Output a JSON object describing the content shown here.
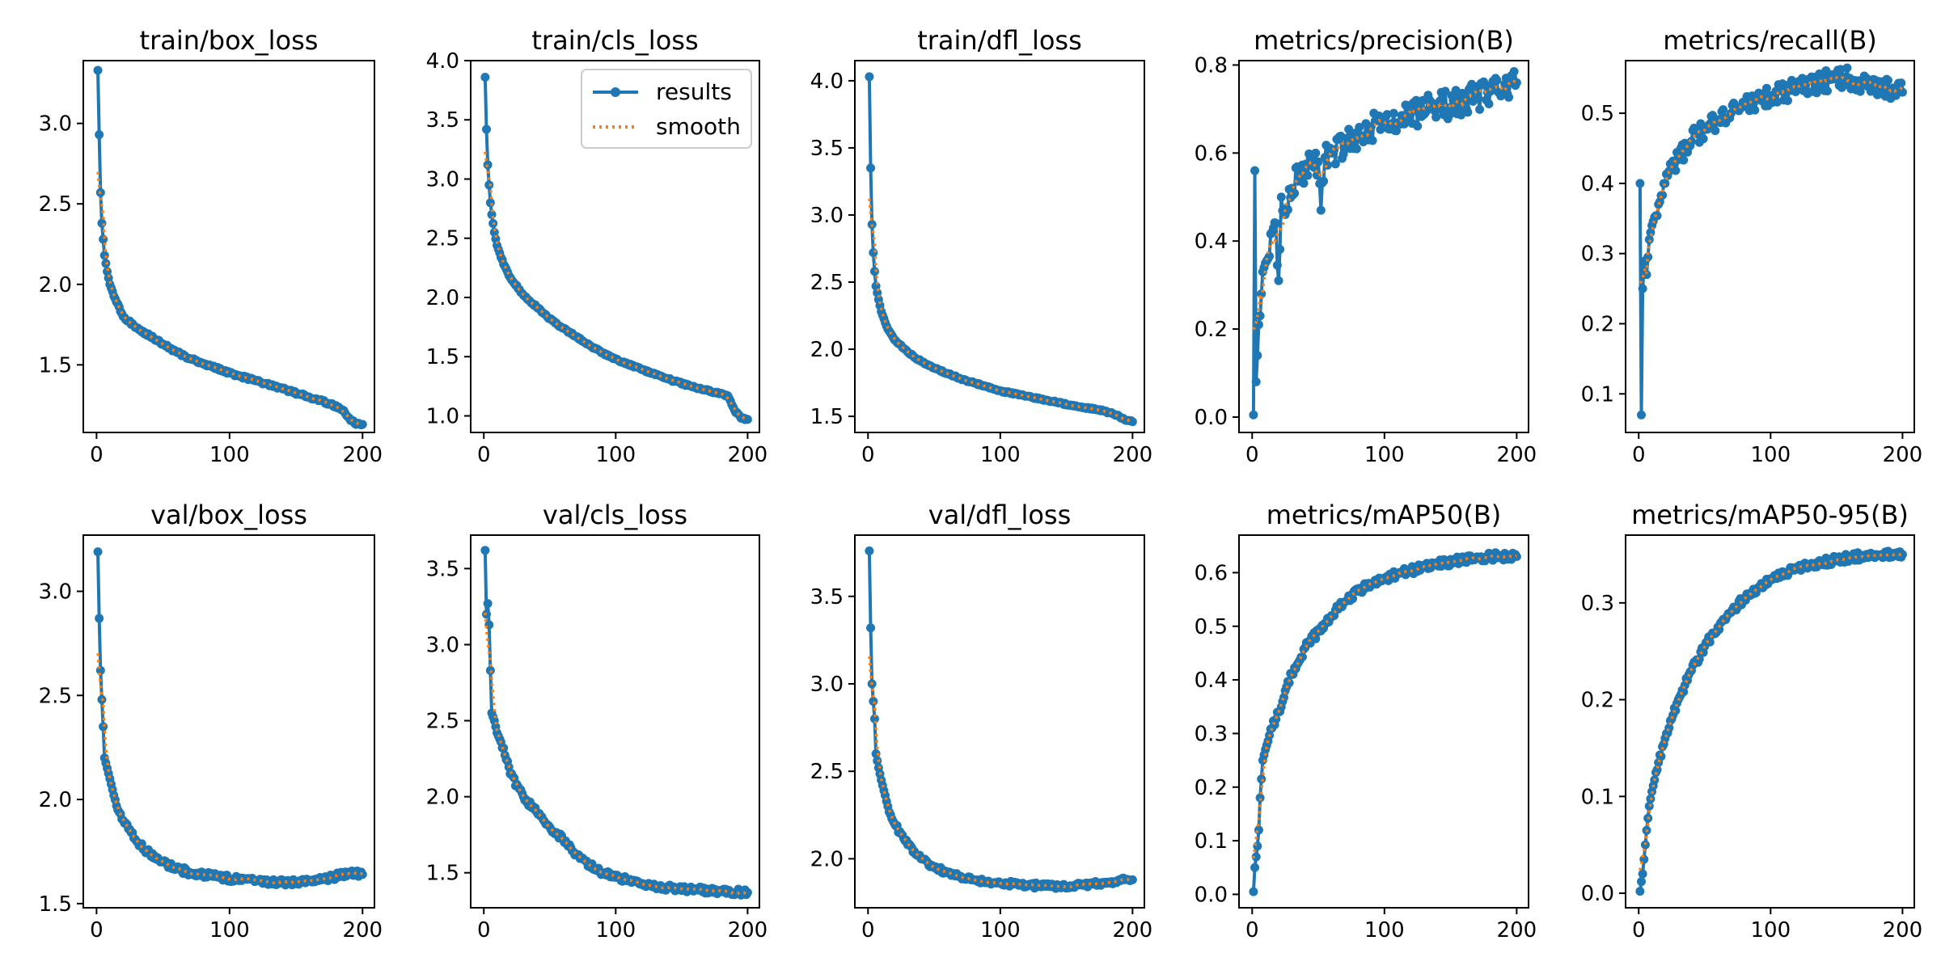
{
  "colors": {
    "results": "#1f77b4",
    "smooth": "#ff7f0e"
  },
  "legend": {
    "entries": [
      "results",
      "smooth"
    ],
    "location": "upper-right",
    "panel": "train/cls_loss"
  },
  "chart_data": [
    {
      "type": "line",
      "title": "train/box_loss",
      "xlim": [
        0,
        200
      ],
      "ylim": [
        1.08,
        3.39
      ],
      "xticks": [
        0,
        100,
        200
      ],
      "yticks": [
        1.5,
        2.0,
        2.5,
        3.0
      ],
      "xtick_labels": [
        "0",
        "100",
        "200"
      ],
      "ytick_labels": [
        "1.5",
        "2.0",
        "2.5",
        "3.0"
      ],
      "kp": [
        [
          1,
          3.33
        ],
        [
          2,
          2.93
        ],
        [
          3,
          2.57
        ],
        [
          4,
          2.38
        ],
        [
          5,
          2.28
        ],
        [
          6,
          2.18
        ],
        [
          8,
          2.08
        ],
        [
          10,
          2.0
        ],
        [
          15,
          1.89
        ],
        [
          20,
          1.8
        ],
        [
          30,
          1.73
        ],
        [
          40,
          1.68
        ],
        [
          50,
          1.63
        ],
        [
          60,
          1.58
        ],
        [
          70,
          1.54
        ],
        [
          80,
          1.51
        ],
        [
          90,
          1.48
        ],
        [
          100,
          1.45
        ],
        [
          120,
          1.4
        ],
        [
          140,
          1.35
        ],
        [
          160,
          1.3
        ],
        [
          175,
          1.26
        ],
        [
          185,
          1.22
        ],
        [
          190,
          1.17
        ],
        [
          195,
          1.13
        ],
        [
          200,
          1.13
        ]
      ],
      "noise": 0.008
    },
    {
      "type": "line",
      "title": "train/cls_loss",
      "xlim": [
        0,
        200
      ],
      "ylim": [
        0.86,
        4.0
      ],
      "xticks": [
        0,
        100,
        200
      ],
      "yticks": [
        1.0,
        1.5,
        2.0,
        2.5,
        3.0,
        3.5,
        4.0
      ],
      "xtick_labels": [
        "0",
        "100",
        "200"
      ],
      "ytick_labels": [
        "1.0",
        "1.5",
        "2.0",
        "2.5",
        "3.0",
        "3.5",
        "4.0"
      ],
      "kp": [
        [
          1,
          3.86
        ],
        [
          2,
          3.42
        ],
        [
          3,
          3.12
        ],
        [
          4,
          2.95
        ],
        [
          5,
          2.8
        ],
        [
          6,
          2.7
        ],
        [
          8,
          2.55
        ],
        [
          10,
          2.44
        ],
        [
          15,
          2.28
        ],
        [
          20,
          2.17
        ],
        [
          30,
          2.02
        ],
        [
          40,
          1.92
        ],
        [
          50,
          1.82
        ],
        [
          60,
          1.74
        ],
        [
          70,
          1.67
        ],
        [
          80,
          1.6
        ],
        [
          90,
          1.53
        ],
        [
          100,
          1.48
        ],
        [
          120,
          1.39
        ],
        [
          140,
          1.31
        ],
        [
          160,
          1.24
        ],
        [
          175,
          1.2
        ],
        [
          185,
          1.17
        ],
        [
          190,
          1.05
        ],
        [
          195,
          0.98
        ],
        [
          200,
          0.97
        ]
      ],
      "noise": 0.008
    },
    {
      "type": "line",
      "title": "train/dfl_loss",
      "xlim": [
        0,
        200
      ],
      "ylim": [
        1.38,
        4.15
      ],
      "xticks": [
        0,
        100,
        200
      ],
      "yticks": [
        1.5,
        2.0,
        2.5,
        3.0,
        3.5,
        4.0
      ],
      "xtick_labels": [
        "0",
        "100",
        "200"
      ],
      "ytick_labels": [
        "1.5",
        "2.0",
        "2.5",
        "3.0",
        "3.5",
        "4.0"
      ],
      "kp": [
        [
          1,
          4.03
        ],
        [
          2,
          3.35
        ],
        [
          3,
          2.93
        ],
        [
          4,
          2.72
        ],
        [
          5,
          2.58
        ],
        [
          6,
          2.47
        ],
        [
          8,
          2.37
        ],
        [
          10,
          2.28
        ],
        [
          15,
          2.15
        ],
        [
          20,
          2.07
        ],
        [
          30,
          1.98
        ],
        [
          40,
          1.91
        ],
        [
          50,
          1.86
        ],
        [
          60,
          1.82
        ],
        [
          70,
          1.78
        ],
        [
          80,
          1.75
        ],
        [
          90,
          1.72
        ],
        [
          100,
          1.69
        ],
        [
          120,
          1.65
        ],
        [
          140,
          1.61
        ],
        [
          160,
          1.57
        ],
        [
          175,
          1.55
        ],
        [
          185,
          1.52
        ],
        [
          190,
          1.5
        ],
        [
          195,
          1.47
        ],
        [
          200,
          1.46
        ]
      ],
      "noise": 0.006
    },
    {
      "type": "line",
      "title": "metrics/precision(B)",
      "xlim": [
        0,
        200
      ],
      "ylim": [
        -0.035,
        0.81
      ],
      "xticks": [
        0,
        100,
        200
      ],
      "yticks": [
        0.0,
        0.2,
        0.4,
        0.6,
        0.8
      ],
      "xtick_labels": [
        "0",
        "100",
        "200"
      ],
      "ytick_labels": [
        "0.0",
        "0.2",
        "0.4",
        "0.6",
        "0.8"
      ],
      "kp": [
        [
          1,
          0.005
        ],
        [
          2,
          0.56
        ],
        [
          3,
          0.08
        ],
        [
          4,
          0.14
        ],
        [
          5,
          0.21
        ],
        [
          6,
          0.23
        ],
        [
          8,
          0.33
        ],
        [
          10,
          0.35
        ],
        [
          12,
          0.36
        ],
        [
          15,
          0.42
        ],
        [
          18,
          0.44
        ],
        [
          20,
          0.31
        ],
        [
          22,
          0.5
        ],
        [
          25,
          0.46
        ],
        [
          30,
          0.52
        ],
        [
          40,
          0.56
        ],
        [
          50,
          0.58
        ],
        [
          52,
          0.47
        ],
        [
          55,
          0.59
        ],
        [
          60,
          0.6
        ],
        [
          70,
          0.62
        ],
        [
          80,
          0.64
        ],
        [
          90,
          0.66
        ],
        [
          100,
          0.67
        ],
        [
          120,
          0.69
        ],
        [
          140,
          0.7
        ],
        [
          160,
          0.72
        ],
        [
          180,
          0.74
        ],
        [
          195,
          0.76
        ],
        [
          200,
          0.76
        ]
      ],
      "noise": 0.035
    },
    {
      "type": "line",
      "title": "metrics/recall(B)",
      "xlim": [
        0,
        200
      ],
      "ylim": [
        0.045,
        0.575
      ],
      "xticks": [
        0,
        100,
        200
      ],
      "yticks": [
        0.1,
        0.2,
        0.3,
        0.4,
        0.5
      ],
      "xtick_labels": [
        "0",
        "100",
        "200"
      ],
      "ytick_labels": [
        "0.1",
        "0.2",
        "0.3",
        "0.4",
        "0.5"
      ],
      "kp": [
        [
          1,
          0.4
        ],
        [
          2,
          0.07
        ],
        [
          3,
          0.25
        ],
        [
          4,
          0.28
        ],
        [
          5,
          0.29
        ],
        [
          6,
          0.27
        ],
        [
          8,
          0.32
        ],
        [
          10,
          0.34
        ],
        [
          15,
          0.37
        ],
        [
          20,
          0.4
        ],
        [
          25,
          0.42
        ],
        [
          30,
          0.44
        ],
        [
          40,
          0.46
        ],
        [
          50,
          0.48
        ],
        [
          60,
          0.49
        ],
        [
          70,
          0.5
        ],
        [
          80,
          0.51
        ],
        [
          90,
          0.52
        ],
        [
          100,
          0.525
        ],
        [
          120,
          0.535
        ],
        [
          140,
          0.545
        ],
        [
          150,
          0.55
        ],
        [
          160,
          0.55
        ],
        [
          180,
          0.54
        ],
        [
          200,
          0.53
        ]
      ],
      "noise": 0.015
    },
    {
      "type": "line",
      "title": "val/box_loss",
      "xlim": [
        0,
        200
      ],
      "ylim": [
        1.48,
        3.27
      ],
      "xticks": [
        0,
        100,
        200
      ],
      "yticks": [
        1.5,
        2.0,
        2.5,
        3.0
      ],
      "xtick_labels": [
        "0",
        "100",
        "200"
      ],
      "ytick_labels": [
        "1.5",
        "2.0",
        "2.5",
        "3.0"
      ],
      "kp": [
        [
          1,
          3.19
        ],
        [
          2,
          2.87
        ],
        [
          3,
          2.62
        ],
        [
          4,
          2.48
        ],
        [
          5,
          2.35
        ],
        [
          6,
          2.2
        ],
        [
          8,
          2.15
        ],
        [
          10,
          2.1
        ],
        [
          15,
          1.97
        ],
        [
          20,
          1.9
        ],
        [
          30,
          1.8
        ],
        [
          40,
          1.74
        ],
        [
          50,
          1.7
        ],
        [
          60,
          1.67
        ],
        [
          70,
          1.65
        ],
        [
          80,
          1.64
        ],
        [
          100,
          1.62
        ],
        [
          120,
          1.61
        ],
        [
          140,
          1.6
        ],
        [
          160,
          1.61
        ],
        [
          180,
          1.63
        ],
        [
          190,
          1.65
        ],
        [
          200,
          1.64
        ]
      ],
      "noise": 0.015
    },
    {
      "type": "line",
      "title": "val/cls_loss",
      "xlim": [
        0,
        200
      ],
      "ylim": [
        1.27,
        3.72
      ],
      "xticks": [
        0,
        100,
        200
      ],
      "yticks": [
        1.5,
        2.0,
        2.5,
        3.0,
        3.5
      ],
      "xtick_labels": [
        "0",
        "100",
        "200"
      ],
      "ytick_labels": [
        "1.5",
        "2.0",
        "2.5",
        "3.0",
        "3.5"
      ],
      "kp": [
        [
          1,
          3.62
        ],
        [
          2,
          3.2
        ],
        [
          3,
          3.27
        ],
        [
          4,
          3.13
        ],
        [
          5,
          2.83
        ],
        [
          6,
          2.55
        ],
        [
          8,
          2.5
        ],
        [
          10,
          2.42
        ],
        [
          15,
          2.32
        ],
        [
          20,
          2.15
        ],
        [
          30,
          2.0
        ],
        [
          40,
          1.9
        ],
        [
          50,
          1.8
        ],
        [
          60,
          1.72
        ],
        [
          70,
          1.62
        ],
        [
          80,
          1.55
        ],
        [
          90,
          1.5
        ],
        [
          100,
          1.47
        ],
        [
          120,
          1.43
        ],
        [
          140,
          1.4
        ],
        [
          160,
          1.39
        ],
        [
          180,
          1.38
        ],
        [
          200,
          1.37
        ]
      ],
      "noise": 0.02
    },
    {
      "type": "line",
      "title": "val/dfl_loss",
      "xlim": [
        0,
        200
      ],
      "ylim": [
        1.72,
        3.85
      ],
      "xticks": [
        0,
        100,
        200
      ],
      "yticks": [
        2.0,
        2.5,
        3.0,
        3.5
      ],
      "xtick_labels": [
        "0",
        "100",
        "200"
      ],
      "ytick_labels": [
        "2.0",
        "2.5",
        "3.0",
        "3.5"
      ],
      "kp": [
        [
          1,
          3.76
        ],
        [
          2,
          3.32
        ],
        [
          3,
          3.0
        ],
        [
          4,
          2.9
        ],
        [
          5,
          2.8
        ],
        [
          6,
          2.6
        ],
        [
          8,
          2.52
        ],
        [
          10,
          2.45
        ],
        [
          15,
          2.3
        ],
        [
          20,
          2.2
        ],
        [
          30,
          2.08
        ],
        [
          40,
          2.0
        ],
        [
          50,
          1.95
        ],
        [
          60,
          1.92
        ],
        [
          70,
          1.9
        ],
        [
          80,
          1.88
        ],
        [
          100,
          1.86
        ],
        [
          120,
          1.85
        ],
        [
          140,
          1.84
        ],
        [
          160,
          1.85
        ],
        [
          180,
          1.86
        ],
        [
          190,
          1.88
        ],
        [
          200,
          1.88
        ]
      ],
      "noise": 0.015
    },
    {
      "type": "line",
      "title": "metrics/mAP50(B)",
      "xlim": [
        0,
        200
      ],
      "ylim": [
        -0.025,
        0.67
      ],
      "xticks": [
        0,
        100,
        200
      ],
      "yticks": [
        0.0,
        0.1,
        0.2,
        0.3,
        0.4,
        0.5,
        0.6
      ],
      "xtick_labels": [
        "0",
        "100",
        "200"
      ],
      "ytick_labels": [
        "0.0",
        "0.1",
        "0.2",
        "0.3",
        "0.4",
        "0.5",
        "0.6"
      ],
      "kp": [
        [
          1,
          0.005
        ],
        [
          2,
          0.05
        ],
        [
          3,
          0.07
        ],
        [
          4,
          0.09
        ],
        [
          5,
          0.12
        ],
        [
          6,
          0.18
        ],
        [
          8,
          0.25
        ],
        [
          10,
          0.27
        ],
        [
          15,
          0.31
        ],
        [
          20,
          0.34
        ],
        [
          25,
          0.38
        ],
        [
          30,
          0.41
        ],
        [
          40,
          0.46
        ],
        [
          50,
          0.49
        ],
        [
          60,
          0.52
        ],
        [
          70,
          0.545
        ],
        [
          80,
          0.565
        ],
        [
          90,
          0.58
        ],
        [
          100,
          0.59
        ],
        [
          120,
          0.605
        ],
        [
          140,
          0.615
        ],
        [
          160,
          0.625
        ],
        [
          180,
          0.63
        ],
        [
          200,
          0.63
        ]
      ],
      "noise": 0.008
    },
    {
      "type": "line",
      "title": "metrics/mAP50-95(B)",
      "xlim": [
        0,
        200
      ],
      "ylim": [
        -0.015,
        0.37
      ],
      "xticks": [
        0,
        100,
        200
      ],
      "yticks": [
        0.0,
        0.1,
        0.2,
        0.3
      ],
      "xtick_labels": [
        "0",
        "100",
        "200"
      ],
      "ytick_labels": [
        "0.0",
        "0.1",
        "0.2",
        "0.3"
      ],
      "kp": [
        [
          1,
          0.002
        ],
        [
          2,
          0.012
        ],
        [
          3,
          0.02
        ],
        [
          4,
          0.035
        ],
        [
          5,
          0.05
        ],
        [
          6,
          0.065
        ],
        [
          8,
          0.09
        ],
        [
          10,
          0.105
        ],
        [
          15,
          0.135
        ],
        [
          20,
          0.16
        ],
        [
          25,
          0.18
        ],
        [
          30,
          0.2
        ],
        [
          40,
          0.23
        ],
        [
          50,
          0.255
        ],
        [
          60,
          0.275
        ],
        [
          70,
          0.29
        ],
        [
          80,
          0.305
        ],
        [
          90,
          0.315
        ],
        [
          100,
          0.325
        ],
        [
          120,
          0.335
        ],
        [
          140,
          0.342
        ],
        [
          160,
          0.347
        ],
        [
          180,
          0.35
        ],
        [
          200,
          0.35
        ]
      ],
      "noise": 0.004
    }
  ]
}
